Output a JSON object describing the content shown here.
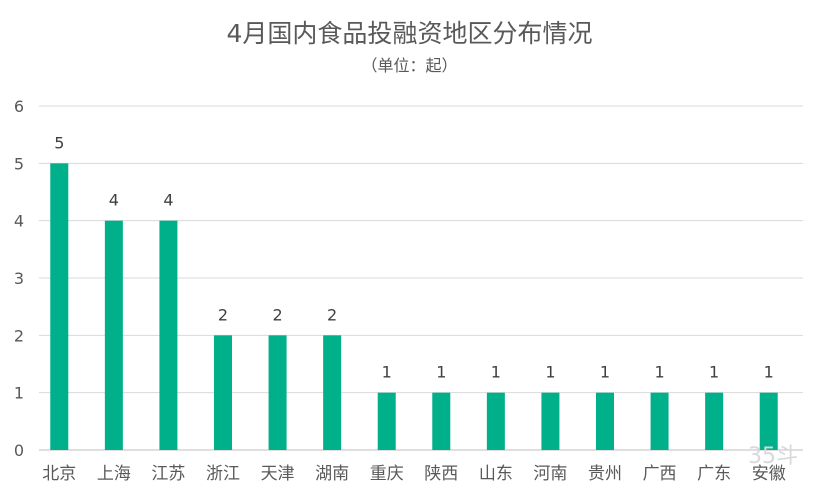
{
  "chart_data": {
    "type": "bar",
    "title": "4月国内食品投融资地区分布情况",
    "subtitle": "（单位：起）",
    "categories": [
      "北京",
      "上海",
      "江苏",
      "浙江",
      "天津",
      "湖南",
      "重庆",
      "陕西",
      "山东",
      "河南",
      "贵州",
      "广西",
      "广东",
      "安徽"
    ],
    "values": [
      5,
      4,
      4,
      2,
      2,
      2,
      1,
      1,
      1,
      1,
      1,
      1,
      1,
      1
    ],
    "ylim": [
      0,
      6
    ],
    "yticks": [
      0,
      1,
      2,
      3,
      4,
      5,
      6
    ],
    "grid": true,
    "bar_color": "#00B08A",
    "data_labels": true
  },
  "watermark": "35斗"
}
